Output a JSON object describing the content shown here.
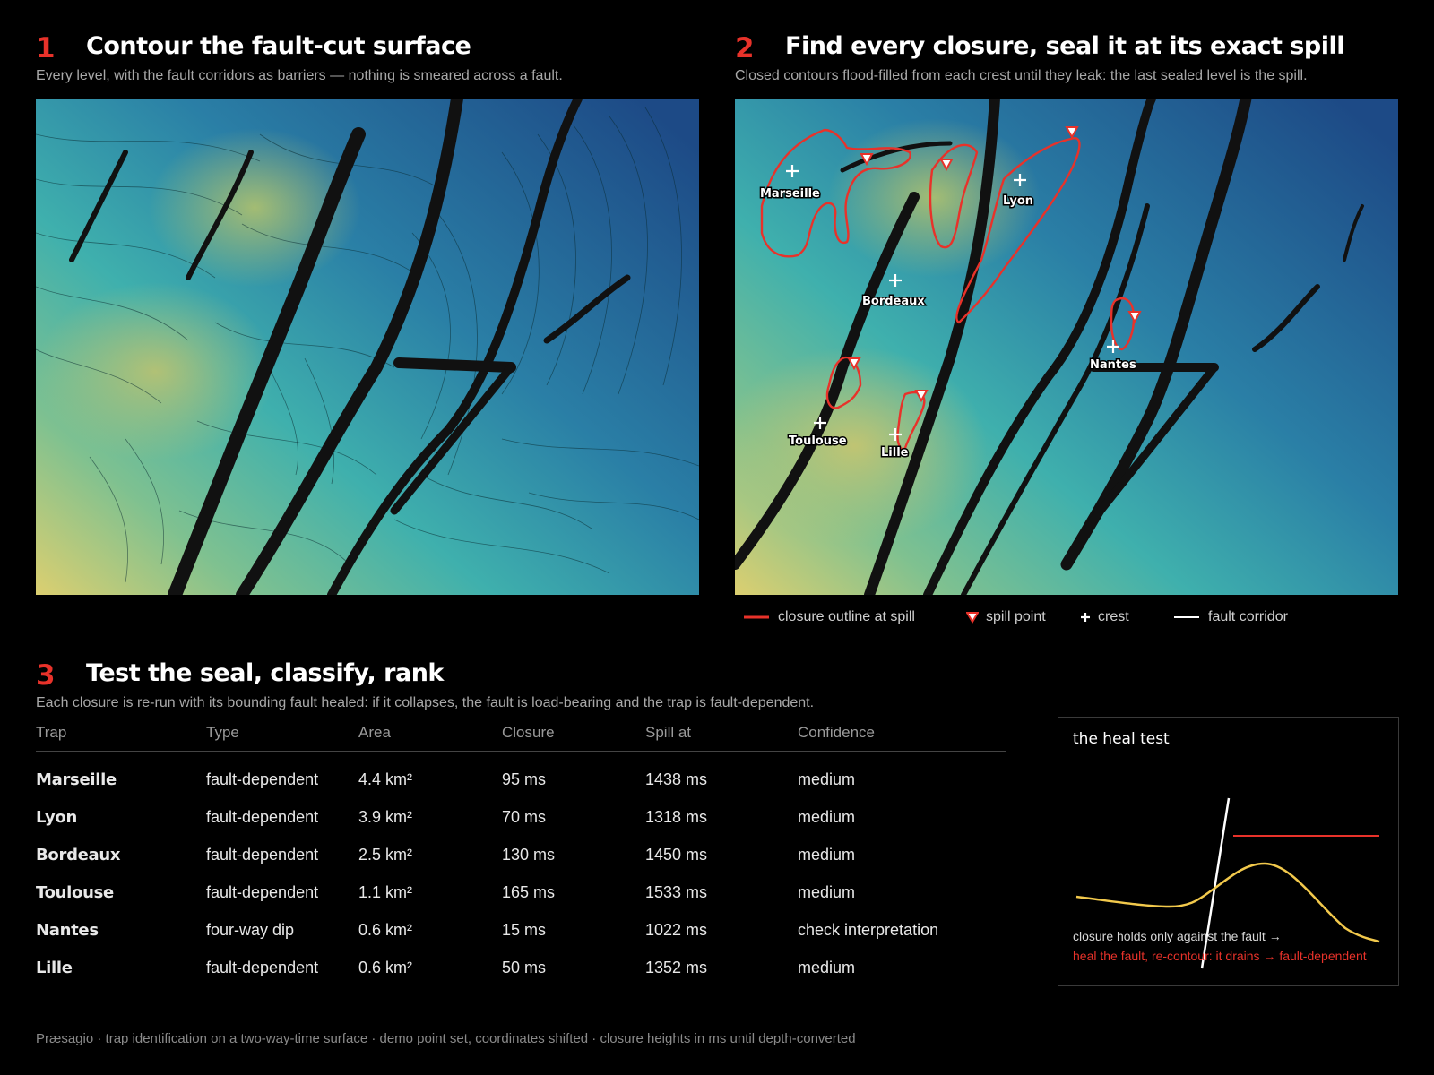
{
  "panels": [
    {
      "num": "1",
      "title": "Contour the fault-cut surface",
      "subtitle": "Every level, with the fault corridors as barriers — nothing is smeared across a fault."
    },
    {
      "num": "2",
      "title": "Find every closure, seal it at its exact spill",
      "subtitle": "Closed contours flood-filled from each crest until they leak: the last sealed level is the spill."
    },
    {
      "num": "3",
      "title": "Test the seal, classify, rank",
      "subtitle": "Each closure is re-run with its bounding fault healed: if it collapses, the fault is load-bearing and the trap is fault-dependent."
    }
  ],
  "map_labels": {
    "marseille": "Marseille",
    "lyon": "Lyon",
    "bordeaux": "Bordeaux",
    "toulouse": "Toulouse",
    "lille": "Lille",
    "nantes": "Nantes"
  },
  "legend": {
    "closure": "closure outline at spill",
    "spill": "spill point",
    "crest": "crest",
    "fault": "fault corridor"
  },
  "table": {
    "headers": [
      "Trap",
      "Type",
      "Area",
      "Closure",
      "Spill at",
      "Confidence"
    ],
    "rows": [
      [
        "Marseille",
        "fault-dependent",
        "4.4 km²",
        "95 ms",
        "1438 ms",
        "medium"
      ],
      [
        "Lyon",
        "fault-dependent",
        "3.9 km²",
        "70 ms",
        "1318 ms",
        "medium"
      ],
      [
        "Bordeaux",
        "fault-dependent",
        "2.5 km²",
        "130 ms",
        "1450 ms",
        "medium"
      ],
      [
        "Toulouse",
        "fault-dependent",
        "1.1 km²",
        "165 ms",
        "1533 ms",
        "medium"
      ],
      [
        "Nantes",
        "four-way dip",
        "0.6 km²",
        "15 ms",
        "1022 ms",
        "check interpretation"
      ],
      [
        "Lille",
        "fault-dependent",
        "0.6 km²",
        "50 ms",
        "1352 ms",
        "medium"
      ]
    ]
  },
  "heal_test": {
    "title": "the heal test",
    "line1": "closure holds only against the fault →",
    "line2": "heal the fault, re-contour: it drains → fault-dependent"
  },
  "footer": "Præsagio · trap identification on a two-way-time surface · demo point set, coordinates shifted · closure heights in ms until depth-converted",
  "colors": {
    "accent": "#e8322a",
    "surface_high": "#d9cc72",
    "surface_mid": "#49b2ad",
    "surface_low": "#1f4f8a",
    "horizon": "#f2c94c"
  }
}
